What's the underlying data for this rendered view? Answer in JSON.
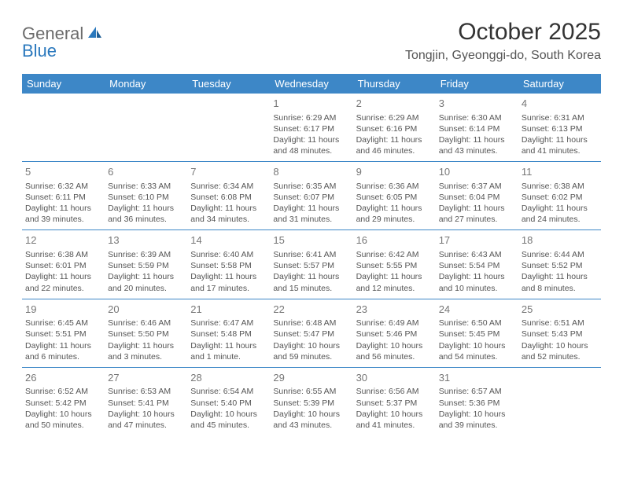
{
  "logo": {
    "part1": "General",
    "part2": "Blue"
  },
  "title": "October 2025",
  "location": "Tongjin, Gyeonggi-do, South Korea",
  "colors": {
    "header_bg": "#3d87c7",
    "header_text": "#ffffff",
    "border": "#3d87c7",
    "logo_gray": "#6b6b6b",
    "logo_blue": "#2a78bd",
    "text": "#555555",
    "background": "#ffffff"
  },
  "typography": {
    "title_fontsize": 30,
    "location_fontsize": 16,
    "day_header_fontsize": 13,
    "cell_fontsize": 10.5,
    "daynum_fontsize": 13
  },
  "day_headers": [
    "Sunday",
    "Monday",
    "Tuesday",
    "Wednesday",
    "Thursday",
    "Friday",
    "Saturday"
  ],
  "weeks": [
    [
      {
        "day": "",
        "lines": []
      },
      {
        "day": "",
        "lines": []
      },
      {
        "day": "",
        "lines": []
      },
      {
        "day": "1",
        "lines": [
          "Sunrise: 6:29 AM",
          "Sunset: 6:17 PM",
          "Daylight: 11 hours",
          "and 48 minutes."
        ]
      },
      {
        "day": "2",
        "lines": [
          "Sunrise: 6:29 AM",
          "Sunset: 6:16 PM",
          "Daylight: 11 hours",
          "and 46 minutes."
        ]
      },
      {
        "day": "3",
        "lines": [
          "Sunrise: 6:30 AM",
          "Sunset: 6:14 PM",
          "Daylight: 11 hours",
          "and 43 minutes."
        ]
      },
      {
        "day": "4",
        "lines": [
          "Sunrise: 6:31 AM",
          "Sunset: 6:13 PM",
          "Daylight: 11 hours",
          "and 41 minutes."
        ]
      }
    ],
    [
      {
        "day": "5",
        "lines": [
          "Sunrise: 6:32 AM",
          "Sunset: 6:11 PM",
          "Daylight: 11 hours",
          "and 39 minutes."
        ]
      },
      {
        "day": "6",
        "lines": [
          "Sunrise: 6:33 AM",
          "Sunset: 6:10 PM",
          "Daylight: 11 hours",
          "and 36 minutes."
        ]
      },
      {
        "day": "7",
        "lines": [
          "Sunrise: 6:34 AM",
          "Sunset: 6:08 PM",
          "Daylight: 11 hours",
          "and 34 minutes."
        ]
      },
      {
        "day": "8",
        "lines": [
          "Sunrise: 6:35 AM",
          "Sunset: 6:07 PM",
          "Daylight: 11 hours",
          "and 31 minutes."
        ]
      },
      {
        "day": "9",
        "lines": [
          "Sunrise: 6:36 AM",
          "Sunset: 6:05 PM",
          "Daylight: 11 hours",
          "and 29 minutes."
        ]
      },
      {
        "day": "10",
        "lines": [
          "Sunrise: 6:37 AM",
          "Sunset: 6:04 PM",
          "Daylight: 11 hours",
          "and 27 minutes."
        ]
      },
      {
        "day": "11",
        "lines": [
          "Sunrise: 6:38 AM",
          "Sunset: 6:02 PM",
          "Daylight: 11 hours",
          "and 24 minutes."
        ]
      }
    ],
    [
      {
        "day": "12",
        "lines": [
          "Sunrise: 6:38 AM",
          "Sunset: 6:01 PM",
          "Daylight: 11 hours",
          "and 22 minutes."
        ]
      },
      {
        "day": "13",
        "lines": [
          "Sunrise: 6:39 AM",
          "Sunset: 5:59 PM",
          "Daylight: 11 hours",
          "and 20 minutes."
        ]
      },
      {
        "day": "14",
        "lines": [
          "Sunrise: 6:40 AM",
          "Sunset: 5:58 PM",
          "Daylight: 11 hours",
          "and 17 minutes."
        ]
      },
      {
        "day": "15",
        "lines": [
          "Sunrise: 6:41 AM",
          "Sunset: 5:57 PM",
          "Daylight: 11 hours",
          "and 15 minutes."
        ]
      },
      {
        "day": "16",
        "lines": [
          "Sunrise: 6:42 AM",
          "Sunset: 5:55 PM",
          "Daylight: 11 hours",
          "and 12 minutes."
        ]
      },
      {
        "day": "17",
        "lines": [
          "Sunrise: 6:43 AM",
          "Sunset: 5:54 PM",
          "Daylight: 11 hours",
          "and 10 minutes."
        ]
      },
      {
        "day": "18",
        "lines": [
          "Sunrise: 6:44 AM",
          "Sunset: 5:52 PM",
          "Daylight: 11 hours",
          "and 8 minutes."
        ]
      }
    ],
    [
      {
        "day": "19",
        "lines": [
          "Sunrise: 6:45 AM",
          "Sunset: 5:51 PM",
          "Daylight: 11 hours",
          "and 6 minutes."
        ]
      },
      {
        "day": "20",
        "lines": [
          "Sunrise: 6:46 AM",
          "Sunset: 5:50 PM",
          "Daylight: 11 hours",
          "and 3 minutes."
        ]
      },
      {
        "day": "21",
        "lines": [
          "Sunrise: 6:47 AM",
          "Sunset: 5:48 PM",
          "Daylight: 11 hours",
          "and 1 minute."
        ]
      },
      {
        "day": "22",
        "lines": [
          "Sunrise: 6:48 AM",
          "Sunset: 5:47 PM",
          "Daylight: 10 hours",
          "and 59 minutes."
        ]
      },
      {
        "day": "23",
        "lines": [
          "Sunrise: 6:49 AM",
          "Sunset: 5:46 PM",
          "Daylight: 10 hours",
          "and 56 minutes."
        ]
      },
      {
        "day": "24",
        "lines": [
          "Sunrise: 6:50 AM",
          "Sunset: 5:45 PM",
          "Daylight: 10 hours",
          "and 54 minutes."
        ]
      },
      {
        "day": "25",
        "lines": [
          "Sunrise: 6:51 AM",
          "Sunset: 5:43 PM",
          "Daylight: 10 hours",
          "and 52 minutes."
        ]
      }
    ],
    [
      {
        "day": "26",
        "lines": [
          "Sunrise: 6:52 AM",
          "Sunset: 5:42 PM",
          "Daylight: 10 hours",
          "and 50 minutes."
        ]
      },
      {
        "day": "27",
        "lines": [
          "Sunrise: 6:53 AM",
          "Sunset: 5:41 PM",
          "Daylight: 10 hours",
          "and 47 minutes."
        ]
      },
      {
        "day": "28",
        "lines": [
          "Sunrise: 6:54 AM",
          "Sunset: 5:40 PM",
          "Daylight: 10 hours",
          "and 45 minutes."
        ]
      },
      {
        "day": "29",
        "lines": [
          "Sunrise: 6:55 AM",
          "Sunset: 5:39 PM",
          "Daylight: 10 hours",
          "and 43 minutes."
        ]
      },
      {
        "day": "30",
        "lines": [
          "Sunrise: 6:56 AM",
          "Sunset: 5:37 PM",
          "Daylight: 10 hours",
          "and 41 minutes."
        ]
      },
      {
        "day": "31",
        "lines": [
          "Sunrise: 6:57 AM",
          "Sunset: 5:36 PM",
          "Daylight: 10 hours",
          "and 39 minutes."
        ]
      },
      {
        "day": "",
        "lines": []
      }
    ]
  ]
}
